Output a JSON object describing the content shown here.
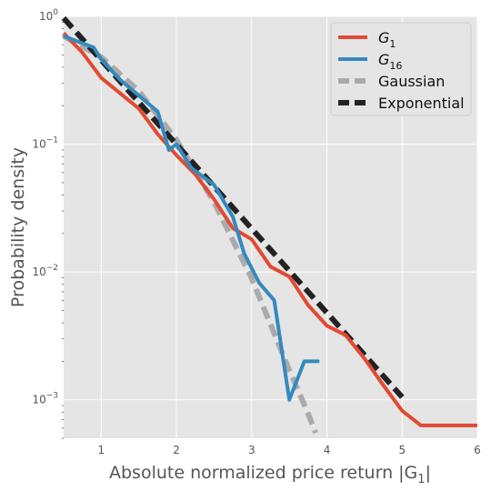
{
  "chart_data": {
    "type": "line",
    "xlabel": "Absolute normalized price return |G",
    "xlabel_sub": "1",
    "xlabel_tail": "|",
    "ylabel": "Probability density",
    "xlim": [
      0.5,
      6
    ],
    "ylim": [
      0.0005,
      1
    ],
    "yscale": "log",
    "grid": true,
    "legend_position": "top-right",
    "x_ticks": [
      {
        "value": 1,
        "label": "1"
      },
      {
        "value": 2,
        "label": "2"
      },
      {
        "value": 3,
        "label": "3"
      },
      {
        "value": 4,
        "label": "4"
      },
      {
        "value": 5,
        "label": "5"
      },
      {
        "value": 6,
        "label": "6"
      }
    ],
    "y_ticks": [
      {
        "value": 1,
        "base": "10",
        "exp": "0"
      },
      {
        "value": 0.1,
        "base": "10",
        "exp": "−1"
      },
      {
        "value": 0.01,
        "base": "10",
        "exp": "−2"
      },
      {
        "value": 0.001,
        "base": "10",
        "exp": "−3"
      }
    ],
    "series": [
      {
        "name": "G",
        "name_sub": "1",
        "color": "#E24A33",
        "style": "solid",
        "x": [
          0.5,
          0.75,
          1.0,
          1.5,
          1.75,
          2.0,
          2.25,
          2.5,
          2.75,
          3.0,
          3.25,
          3.5,
          3.75,
          4.0,
          4.25,
          4.5,
          4.75,
          5.0,
          5.25,
          6.0
        ],
        "y": [
          0.74,
          0.52,
          0.33,
          0.19,
          0.12,
          0.082,
          0.058,
          0.037,
          0.022,
          0.018,
          0.011,
          0.0092,
          0.0055,
          0.0038,
          0.0032,
          0.0021,
          0.0013,
          0.00082,
          0.00063,
          0.00063
        ]
      },
      {
        "name": "G",
        "name_sub": "16",
        "color": "#348ABD",
        "style": "solid",
        "x": [
          0.5,
          0.9,
          1.0,
          1.25,
          1.5,
          1.75,
          1.9,
          2.0,
          2.2,
          2.5,
          2.75,
          2.9,
          3.1,
          3.3,
          3.5,
          3.7,
          3.9
        ],
        "y": [
          0.7,
          0.57,
          0.46,
          0.32,
          0.24,
          0.18,
          0.09,
          0.1,
          0.065,
          0.048,
          0.027,
          0.014,
          0.0082,
          0.006,
          0.001,
          0.002,
          0.002
        ]
      },
      {
        "name": "Gaussian",
        "color": "#AAAAAA",
        "style": "dashed",
        "x": [
          0.5,
          1.0,
          1.5,
          2.0,
          2.5,
          3.0,
          3.5,
          3.6,
          3.75,
          3.85
        ],
        "y": [
          0.7,
          0.48,
          0.26,
          0.108,
          0.035,
          0.0089,
          0.0017,
          0.00125,
          0.00078,
          0.00055
        ]
      },
      {
        "name": "Exponential",
        "color": "#222222",
        "style": "dashed",
        "x": [
          0.5,
          5.0
        ],
        "y": [
          0.97,
          0.00105
        ]
      }
    ]
  }
}
